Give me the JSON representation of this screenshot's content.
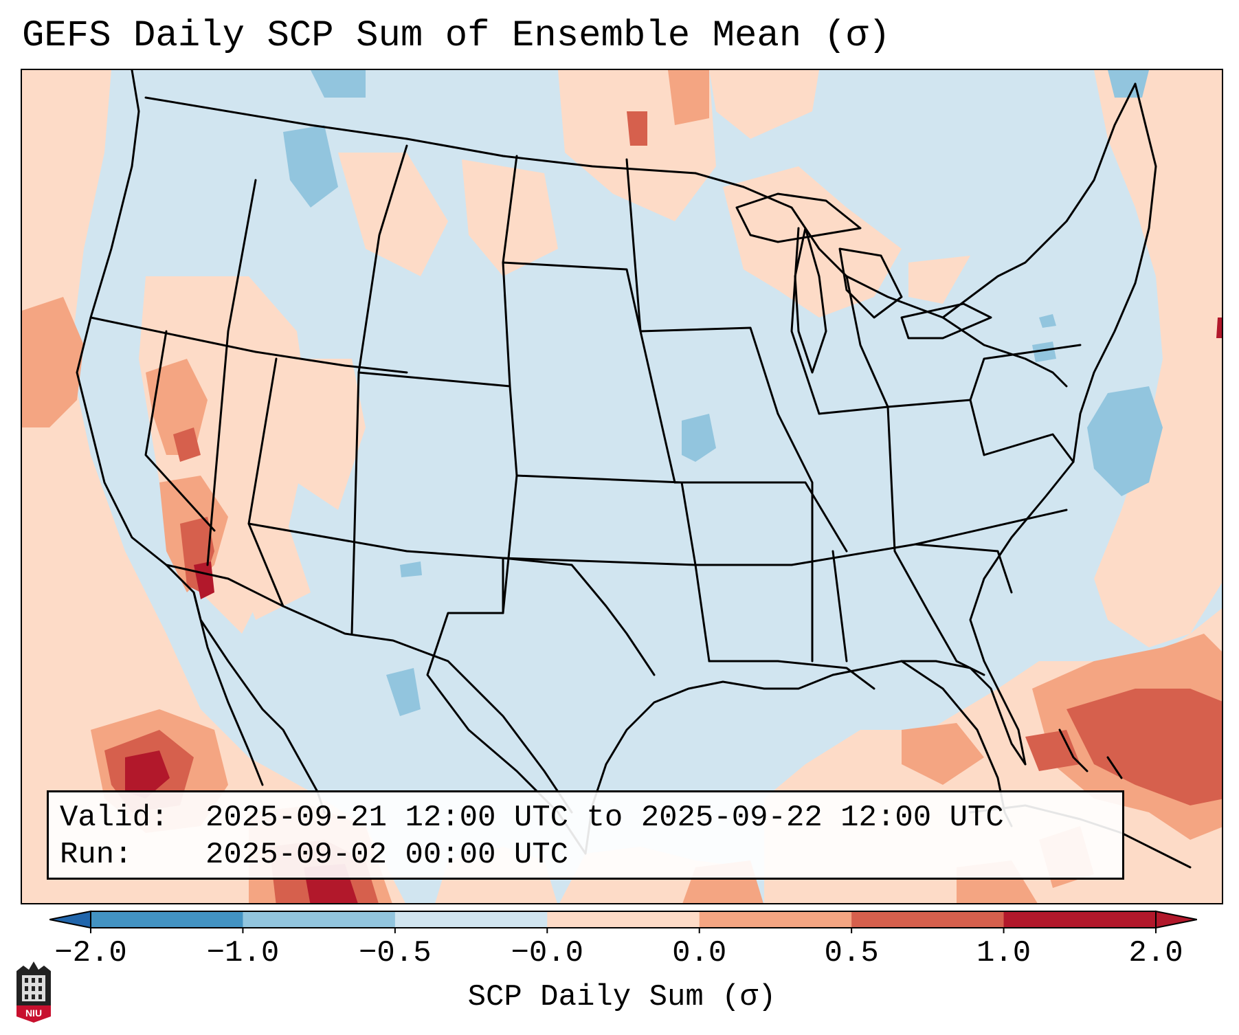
{
  "title": "GEFS Daily SCP Sum of Ensemble Mean (σ)",
  "valid": {
    "label": "Valid:",
    "value": "2025-09-21 12:00 UTC to 2025-09-22 12:00 UTC"
  },
  "run": {
    "label": "Run:",
    "value": "2025-09-02 00:00 UTC"
  },
  "colorbar": {
    "label": "SCP Daily Sum (σ)",
    "ticks": [
      "−2.0",
      "−1.0",
      "−0.5",
      "−0.0",
      "0.0",
      "0.5",
      "1.0",
      "2.0"
    ],
    "colors": [
      "#4393c3",
      "#92c5de",
      "#d1e5f0",
      "#f7f7f7",
      "#fddbc7",
      "#f4a582",
      "#d6604d",
      "#b2182b"
    ],
    "under_color": "#2166ac",
    "over_color": "#b2182b"
  },
  "logo": {
    "text": "NIU"
  }
}
